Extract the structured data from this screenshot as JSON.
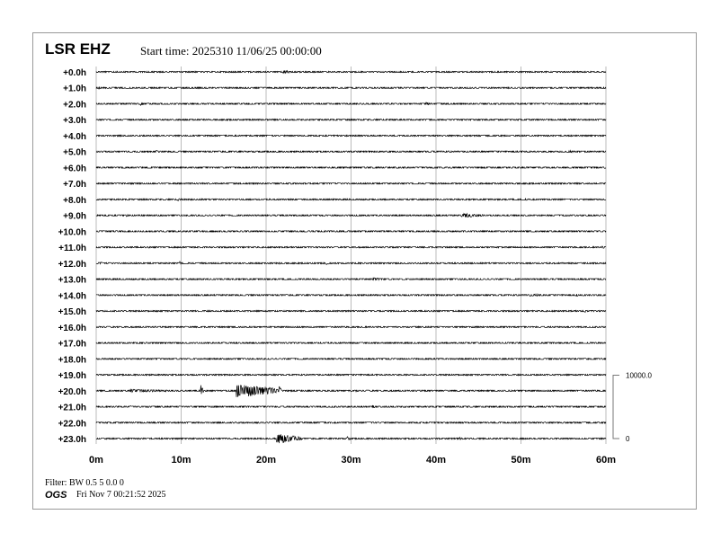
{
  "header": {
    "station": "LSR EHZ",
    "start_time": "Start time: 2025310 11/06/25 00:00:00"
  },
  "footer": {
    "filter": "Filter: BW 0.5 5 0.0 0",
    "org": "OGS",
    "timestamp": "Fri Nov  7 00:21:52 2025"
  },
  "chart_data": {
    "type": "line",
    "title": "",
    "rows": [
      "+0.0h",
      "+1.0h",
      "+2.0h",
      "+3.0h",
      "+4.0h",
      "+5.0h",
      "+6.0h",
      "+7.0h",
      "+8.0h",
      "+9.0h",
      "+10.0h",
      "+11.0h",
      "+12.0h",
      "+13.0h",
      "+14.0h",
      "+15.0h",
      "+16.0h",
      "+17.0h",
      "+18.0h",
      "+19.0h",
      "+20.0h",
      "+21.0h",
      "+22.0h",
      "+23.0h"
    ],
    "x_ticks": [
      "0m",
      "10m",
      "20m",
      "30m",
      "40m",
      "50m",
      "60m"
    ],
    "xlim": [
      0,
      60
    ],
    "grid": true,
    "scale_bar": {
      "top_label": "10000.0",
      "bottom_label": "0",
      "range": [
        0,
        10000
      ]
    },
    "trace_color": "#000000",
    "grid_color": "#bbbbbb",
    "events": [
      {
        "row": 0,
        "minute": 22,
        "duration": 1.5,
        "amplitude": 250
      },
      {
        "row": 1,
        "minute": 0.3,
        "duration": 0.3,
        "amplitude": 200
      },
      {
        "row": 2,
        "minute": 5.2,
        "duration": 0.4,
        "amplitude": 300
      },
      {
        "row": 2,
        "minute": 38.8,
        "duration": 0.4,
        "amplitude": 350
      },
      {
        "row": 4,
        "minute": 20.5,
        "duration": 0.3,
        "amplitude": 200
      },
      {
        "row": 5,
        "minute": 7,
        "duration": 0.6,
        "amplitude": 200
      },
      {
        "row": 5,
        "minute": 55.5,
        "duration": 1,
        "amplitude": 200
      },
      {
        "row": 6,
        "minute": 59.8,
        "duration": 0.3,
        "amplitude": 200
      },
      {
        "row": 8,
        "minute": 9.6,
        "duration": 0.6,
        "amplitude": 250
      },
      {
        "row": 8,
        "minute": 50.5,
        "duration": 0.5,
        "amplitude": 200
      },
      {
        "row": 9,
        "minute": 3.5,
        "duration": 0.6,
        "amplitude": 200
      },
      {
        "row": 9,
        "minute": 43,
        "duration": 3,
        "amplitude": 350
      },
      {
        "row": 10,
        "minute": 38.5,
        "duration": 1.2,
        "amplitude": 150
      },
      {
        "row": 11,
        "minute": 59.5,
        "duration": 0.6,
        "amplitude": 200
      },
      {
        "row": 12,
        "minute": 0.3,
        "duration": 0.8,
        "amplitude": 250
      },
      {
        "row": 12,
        "minute": 9.8,
        "duration": 0.2,
        "amplitude": 400
      },
      {
        "row": 12,
        "minute": 21.5,
        "duration": 0.2,
        "amplitude": 300
      },
      {
        "row": 12,
        "minute": 27,
        "duration": 0.4,
        "amplitude": 350
      },
      {
        "row": 13,
        "minute": 32.5,
        "duration": 1.5,
        "amplitude": 250
      },
      {
        "row": 14,
        "minute": 51,
        "duration": 2.5,
        "amplitude": 200
      },
      {
        "row": 14,
        "minute": 56.5,
        "duration": 0.3,
        "amplitude": 250
      },
      {
        "row": 15,
        "minute": 57.5,
        "duration": 0.3,
        "amplitude": 250
      },
      {
        "row": 20,
        "minute": 4,
        "duration": 6,
        "amplitude": 250
      },
      {
        "row": 20,
        "minute": 12.3,
        "duration": 0.3,
        "amplitude": 1000
      },
      {
        "row": 20,
        "minute": 16.5,
        "duration": 5,
        "amplitude": 1100
      },
      {
        "row": 20,
        "minute": 21.5,
        "duration": 0.3,
        "amplitude": 900
      },
      {
        "row": 20,
        "minute": 30.5,
        "duration": 0.6,
        "amplitude": 150
      },
      {
        "row": 20,
        "minute": 48,
        "duration": 2,
        "amplitude": 150
      },
      {
        "row": 21,
        "minute": 4,
        "duration": 0.3,
        "amplitude": 200
      },
      {
        "row": 21,
        "minute": 32.5,
        "duration": 0.4,
        "amplitude": 250
      },
      {
        "row": 23,
        "minute": 21.2,
        "duration": 3,
        "amplitude": 800
      },
      {
        "row": 23,
        "minute": 29.5,
        "duration": 0.5,
        "amplitude": 350
      },
      {
        "row": 23,
        "minute": 42.7,
        "duration": 0.4,
        "amplitude": 300
      }
    ]
  }
}
